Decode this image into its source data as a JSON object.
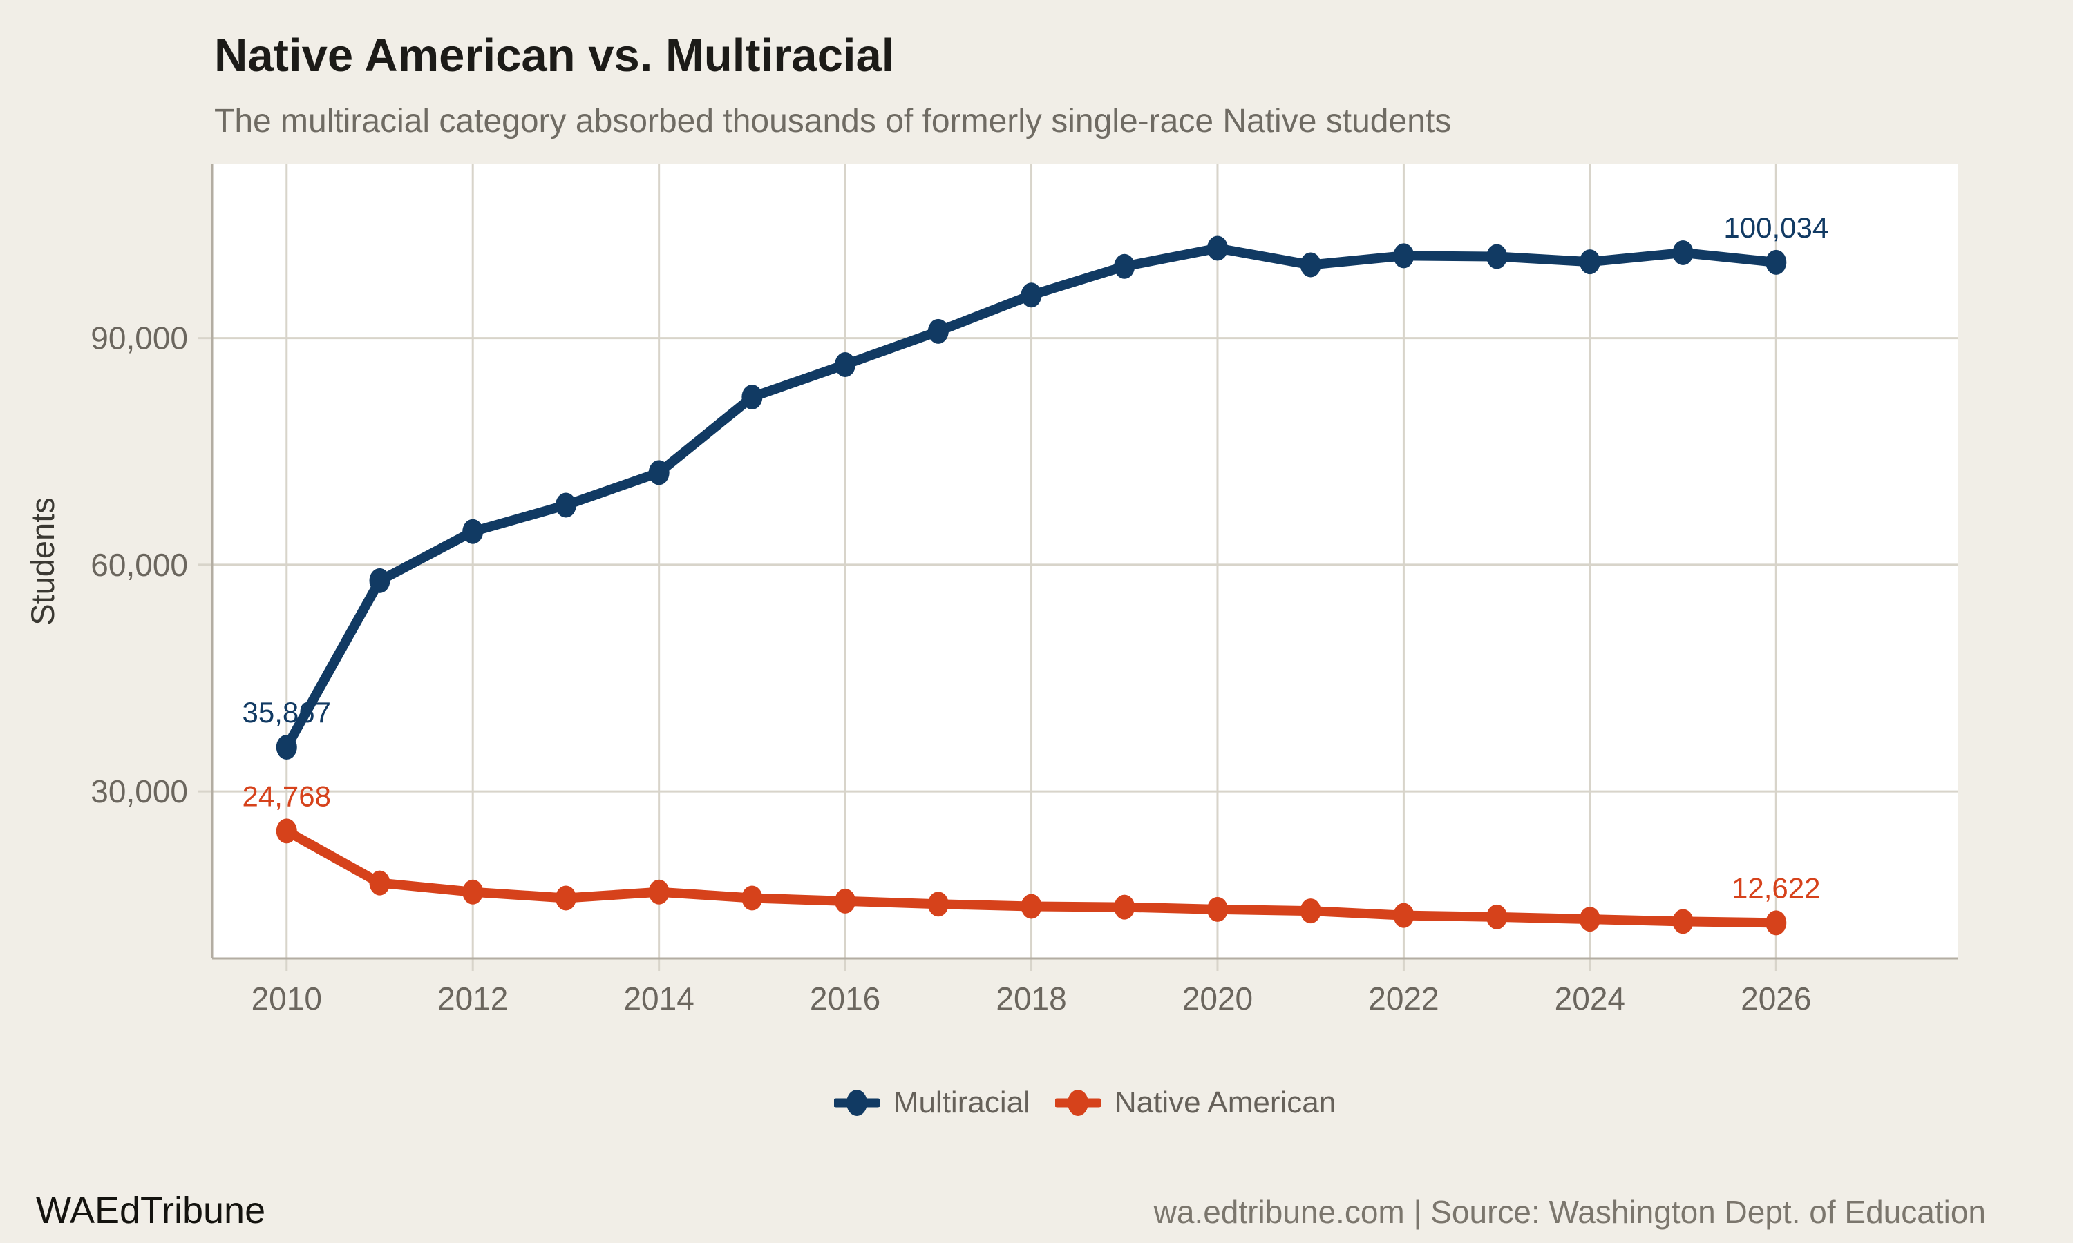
{
  "chart_data": {
    "type": "line",
    "title": "Native American vs. Multiracial",
    "subtitle": "The multiracial category absorbed thousands of formerly single-race Native students",
    "xlabel": "",
    "ylabel": "Students",
    "x": [
      2010,
      2011,
      2012,
      2013,
      2014,
      2015,
      2016,
      2017,
      2018,
      2019,
      2020,
      2021,
      2022,
      2023,
      2024,
      2025,
      2026
    ],
    "series": [
      {
        "name": "Multiracial",
        "color": "#113a63",
        "values": [
          35867,
          57900,
          64400,
          67900,
          72200,
          82200,
          86500,
          90900,
          95700,
          99500,
          101900,
          99700,
          100900,
          100800,
          100100,
          101300,
          100034
        ]
      },
      {
        "name": "Native American",
        "color": "#d6421b",
        "values": [
          24768,
          17900,
          16700,
          15900,
          16700,
          15900,
          15500,
          15100,
          14800,
          14700,
          14400,
          14200,
          13600,
          13400,
          13100,
          12800,
          12622
        ]
      }
    ],
    "point_labels": [
      {
        "series": 0,
        "year": 2010,
        "text": "35,867"
      },
      {
        "series": 0,
        "year": 2026,
        "text": "100,034"
      },
      {
        "series": 1,
        "year": 2010,
        "text": "24,768"
      },
      {
        "series": 1,
        "year": 2026,
        "text": "12,622"
      }
    ],
    "xlim": [
      2009.2,
      2027.95
    ],
    "ylim": [
      7900,
      113000
    ],
    "xticks": {
      "values": [
        2010,
        2012,
        2014,
        2016,
        2018,
        2020,
        2022,
        2024,
        2026
      ],
      "labels": [
        "2010",
        "2012",
        "2014",
        "2016",
        "2018",
        "2020",
        "2022",
        "2024",
        "2026"
      ]
    },
    "yticks": {
      "values": [
        30000,
        60000,
        90000
      ],
      "labels": [
        "30,000",
        "60,000",
        "90,000"
      ]
    },
    "grid": true,
    "legend_position": "bottom"
  },
  "colors": {
    "background": "#f1eee7",
    "plot_background": "#ffffff",
    "gridline": "#d8d4ca",
    "axis_line": "#b3ada2",
    "tick_text": "#6b665e",
    "title_text": "#1c1b18",
    "subtitle_text": "#6f6b63",
    "legend_text": "#66615a",
    "series_blue": "#113a63",
    "series_orange": "#d6421b",
    "footer_text": "#7b766d"
  },
  "footer": {
    "brand": "WAEdTribune",
    "source": "wa.edtribune.com | Source: Washington Dept. of Education"
  }
}
